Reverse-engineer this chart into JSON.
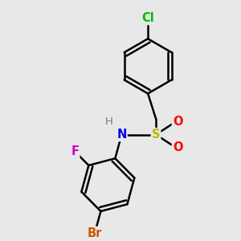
{
  "background_color": "#e8e8e8",
  "bond_color": "#000000",
  "bond_width": 1.8,
  "atoms": {
    "Cl": {
      "color": "#00bb00",
      "fontsize": 10.5
    },
    "S": {
      "color": "#bbbb00",
      "fontsize": 10.5
    },
    "O": {
      "color": "#ff0000",
      "fontsize": 10.5
    },
    "N": {
      "color": "#0000ee",
      "fontsize": 10.5
    },
    "H": {
      "color": "#777777",
      "fontsize": 9.5
    },
    "F": {
      "color": "#cc00cc",
      "fontsize": 10.5
    },
    "Br": {
      "color": "#cc5500",
      "fontsize": 10.5
    }
  },
  "figsize": [
    3.0,
    3.0
  ],
  "dpi": 100,
  "xlim": [
    0,
    10
  ],
  "ylim": [
    0,
    10
  ]
}
